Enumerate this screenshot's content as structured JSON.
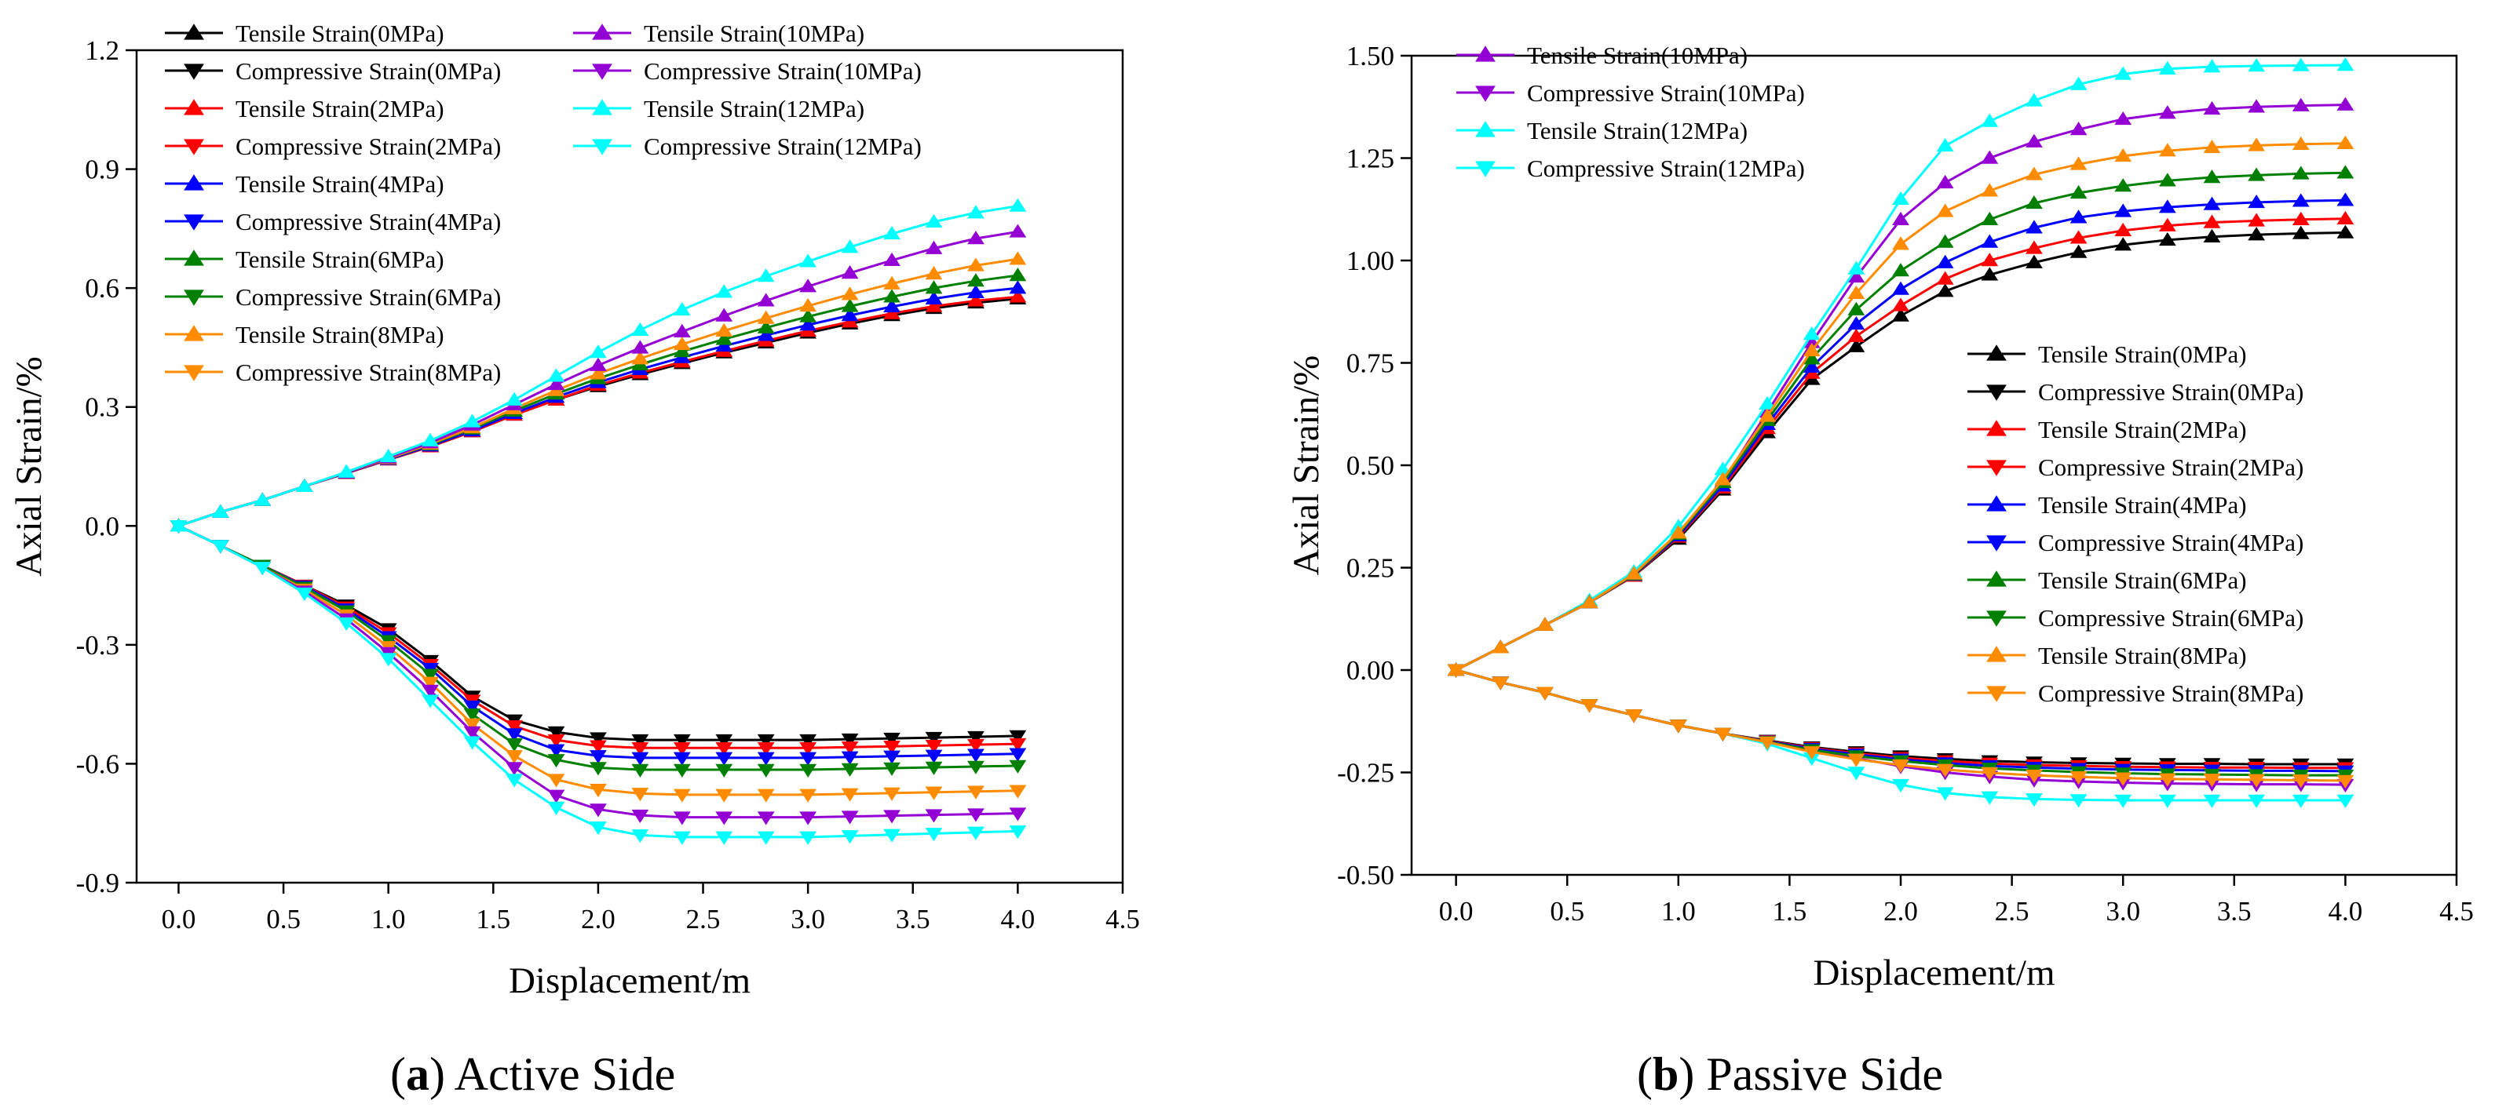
{
  "captions": [
    {
      "letter": "a",
      "text": "Active Side"
    },
    {
      "letter": "b",
      "text": "Passive Side"
    }
  ],
  "colors": {
    "0MPa": "#000000",
    "2MPa": "#ff0000",
    "4MPa": "#0000ff",
    "6MPa": "#008000",
    "8MPa": "#ff8c00",
    "10MPa": "#9400d3",
    "12MPa": "#00ffff"
  },
  "chart_data": [
    {
      "type": "line",
      "title": "",
      "xlabel": "Displacement/m",
      "ylabel": "Axial Strain/%",
      "xlim": [
        -0.2,
        4.5
      ],
      "ylim": [
        -0.9,
        1.2
      ],
      "xticks": [
        "0.0",
        "0.5",
        "1.0",
        "1.5",
        "2.0",
        "2.5",
        "3.0",
        "3.5",
        "4.0",
        "4.5"
      ],
      "yticks": [
        "-0.9",
        "-0.6",
        "-0.3",
        "0.0",
        "0.3",
        "0.6",
        "0.9",
        "1.2"
      ],
      "legend": "top-left",
      "x": [
        0,
        0.2,
        0.4,
        0.6,
        0.8,
        1.0,
        1.2,
        1.4,
        1.6,
        1.8,
        2.0,
        2.2,
        2.4,
        2.6,
        2.8,
        3.0,
        3.2,
        3.4,
        3.6,
        3.8,
        4.0
      ],
      "series": [
        {
          "name": "Tensile Strain(0MPa)",
          "key": "0MPa",
          "marker": "up",
          "values": [
            0,
            0.035,
            0.065,
            0.1,
            0.133,
            0.167,
            0.2,
            0.238,
            0.28,
            0.318,
            0.352,
            0.382,
            0.41,
            0.437,
            0.462,
            0.487,
            0.51,
            0.531,
            0.549,
            0.563,
            0.573
          ]
        },
        {
          "name": "Compressive Strain(0MPa)",
          "key": "0MPa",
          "marker": "down",
          "values": [
            0,
            -0.05,
            -0.1,
            -0.15,
            -0.2,
            -0.26,
            -0.34,
            -0.43,
            -0.49,
            -0.52,
            -0.535,
            -0.54,
            -0.54,
            -0.54,
            -0.54,
            -0.54,
            -0.538,
            -0.536,
            -0.534,
            -0.532,
            -0.53
          ]
        },
        {
          "name": "Tensile Strain(2MPa)",
          "key": "2MPa",
          "marker": "up",
          "values": [
            0,
            0.035,
            0.065,
            0.1,
            0.133,
            0.167,
            0.2,
            0.238,
            0.28,
            0.318,
            0.355,
            0.386,
            0.414,
            0.441,
            0.467,
            0.492,
            0.515,
            0.536,
            0.554,
            0.568,
            0.578
          ]
        },
        {
          "name": "Compressive Strain(2MPa)",
          "key": "2MPa",
          "marker": "down",
          "values": [
            0,
            -0.05,
            -0.1,
            -0.15,
            -0.205,
            -0.27,
            -0.35,
            -0.44,
            -0.505,
            -0.54,
            -0.555,
            -0.56,
            -0.56,
            -0.56,
            -0.56,
            -0.56,
            -0.558,
            -0.556,
            -0.554,
            -0.552,
            -0.55
          ]
        },
        {
          "name": "Tensile Strain(4MPa)",
          "key": "4MPa",
          "marker": "up",
          "values": [
            0,
            0.035,
            0.065,
            0.1,
            0.134,
            0.168,
            0.202,
            0.24,
            0.284,
            0.325,
            0.362,
            0.395,
            0.425,
            0.454,
            0.481,
            0.507,
            0.531,
            0.553,
            0.573,
            0.589,
            0.6
          ]
        },
        {
          "name": "Compressive Strain(4MPa)",
          "key": "4MPa",
          "marker": "down",
          "values": [
            0,
            -0.05,
            -0.1,
            -0.152,
            -0.21,
            -0.28,
            -0.36,
            -0.455,
            -0.525,
            -0.565,
            -0.58,
            -0.585,
            -0.585,
            -0.585,
            -0.585,
            -0.585,
            -0.583,
            -0.581,
            -0.579,
            -0.577,
            -0.575
          ]
        },
        {
          "name": "Tensile Strain(6MPa)",
          "key": "6MPa",
          "marker": "up",
          "values": [
            0,
            0.035,
            0.065,
            0.1,
            0.135,
            0.17,
            0.205,
            0.245,
            0.29,
            0.333,
            0.372,
            0.407,
            0.44,
            0.471,
            0.5,
            0.528,
            0.554,
            0.578,
            0.6,
            0.618,
            0.632
          ]
        },
        {
          "name": "Compressive Strain(6MPa)",
          "key": "6MPa",
          "marker": "down",
          "values": [
            0,
            -0.05,
            -0.1,
            -0.155,
            -0.215,
            -0.29,
            -0.375,
            -0.475,
            -0.55,
            -0.59,
            -0.61,
            -0.615,
            -0.615,
            -0.615,
            -0.615,
            -0.615,
            -0.613,
            -0.611,
            -0.609,
            -0.607,
            -0.605
          ]
        },
        {
          "name": "Tensile Strain(8MPa)",
          "key": "8MPa",
          "marker": "up",
          "values": [
            0,
            0.035,
            0.065,
            0.1,
            0.135,
            0.17,
            0.207,
            0.248,
            0.296,
            0.342,
            0.384,
            0.422,
            0.458,
            0.492,
            0.524,
            0.555,
            0.584,
            0.611,
            0.636,
            0.657,
            0.673
          ]
        },
        {
          "name": "Compressive Strain(8MPa)",
          "key": "8MPa",
          "marker": "down",
          "values": [
            0,
            -0.05,
            -0.105,
            -0.16,
            -0.225,
            -0.305,
            -0.395,
            -0.5,
            -0.58,
            -0.64,
            -0.665,
            -0.675,
            -0.678,
            -0.678,
            -0.678,
            -0.678,
            -0.676,
            -0.674,
            -0.672,
            -0.67,
            -0.668
          ]
        },
        {
          "name": "Tensile Strain(10MPa)",
          "key": "10MPa",
          "marker": "up",
          "values": [
            0,
            0.035,
            0.065,
            0.1,
            0.135,
            0.172,
            0.21,
            0.255,
            0.306,
            0.357,
            0.405,
            0.449,
            0.49,
            0.53,
            0.568,
            0.604,
            0.638,
            0.67,
            0.7,
            0.725,
            0.742
          ]
        },
        {
          "name": "Compressive Strain(10MPa)",
          "key": "10MPa",
          "marker": "down",
          "values": [
            0,
            -0.05,
            -0.105,
            -0.165,
            -0.235,
            -0.32,
            -0.415,
            -0.52,
            -0.61,
            -0.68,
            -0.715,
            -0.73,
            -0.735,
            -0.735,
            -0.735,
            -0.735,
            -0.733,
            -0.731,
            -0.729,
            -0.727,
            -0.725
          ]
        },
        {
          "name": "Tensile Strain(12MPa)",
          "key": "12MPa",
          "marker": "up",
          "values": [
            0,
            0.035,
            0.065,
            0.1,
            0.136,
            0.175,
            0.215,
            0.263,
            0.318,
            0.378,
            0.438,
            0.494,
            0.545,
            0.59,
            0.63,
            0.667,
            0.703,
            0.737,
            0.767,
            0.79,
            0.807
          ]
        },
        {
          "name": "Compressive Strain(12MPa)",
          "key": "12MPa",
          "marker": "down",
          "values": [
            0,
            -0.05,
            -0.105,
            -0.17,
            -0.245,
            -0.335,
            -0.44,
            -0.545,
            -0.64,
            -0.71,
            -0.76,
            -0.78,
            -0.785,
            -0.785,
            -0.785,
            -0.785,
            -0.782,
            -0.779,
            -0.776,
            -0.773,
            -0.77
          ]
        }
      ]
    },
    {
      "type": "line",
      "title": "",
      "xlabel": "Displacement/m",
      "ylabel": "Axial Strain/%",
      "xlim": [
        -0.2,
        4.5
      ],
      "ylim": [
        -0.5,
        1.5
      ],
      "xticks": [
        "0.0",
        "0.5",
        "1.0",
        "1.5",
        "2.0",
        "2.5",
        "3.0",
        "3.5",
        "4.0",
        "4.5"
      ],
      "yticks": [
        "-0.50",
        "-0.25",
        "0.00",
        "0.25",
        "0.50",
        "0.75",
        "1.00",
        "1.25",
        "1.50"
      ],
      "legend": "top-left (12MPa, 10MPa); center-right (0–8MPa)",
      "x": [
        0,
        0.2,
        0.4,
        0.6,
        0.8,
        1.0,
        1.2,
        1.4,
        1.6,
        1.8,
        2.0,
        2.2,
        2.4,
        2.6,
        2.8,
        3.0,
        3.2,
        3.4,
        3.6,
        3.8,
        4.0
      ],
      "series": [
        {
          "name": "Tensile Strain(10MPa)",
          "key": "10MPa",
          "marker": "up",
          "values": [
            0,
            0.055,
            0.11,
            0.165,
            0.23,
            0.33,
            0.46,
            0.63,
            0.8,
            0.96,
            1.1,
            1.19,
            1.25,
            1.29,
            1.32,
            1.345,
            1.36,
            1.37,
            1.375,
            1.378,
            1.38
          ]
        },
        {
          "name": "Compressive Strain(10MPa)",
          "key": "10MPa",
          "marker": "down",
          "values": [
            0,
            -0.03,
            -0.055,
            -0.085,
            -0.11,
            -0.135,
            -0.155,
            -0.175,
            -0.195,
            -0.215,
            -0.235,
            -0.25,
            -0.26,
            -0.268,
            -0.272,
            -0.275,
            -0.277,
            -0.278,
            -0.279,
            -0.279,
            -0.28
          ]
        },
        {
          "name": "Tensile Strain(12MPa)",
          "key": "12MPa",
          "marker": "up",
          "values": [
            0,
            0.055,
            0.11,
            0.17,
            0.24,
            0.35,
            0.49,
            0.65,
            0.82,
            0.98,
            1.15,
            1.28,
            1.34,
            1.39,
            1.43,
            1.455,
            1.468,
            1.473,
            1.475,
            1.476,
            1.477
          ]
        },
        {
          "name": "Compressive Strain(12MPa)",
          "key": "12MPa",
          "marker": "down",
          "values": [
            0,
            -0.03,
            -0.055,
            -0.085,
            -0.11,
            -0.135,
            -0.155,
            -0.18,
            -0.215,
            -0.25,
            -0.28,
            -0.3,
            -0.31,
            -0.315,
            -0.317,
            -0.318,
            -0.318,
            -0.318,
            -0.318,
            -0.318,
            -0.318
          ]
        },
        {
          "name": "Tensile Strain(0MPa)",
          "key": "0MPa",
          "marker": "up",
          "values": [
            0,
            0.055,
            0.11,
            0.165,
            0.23,
            0.32,
            0.44,
            0.58,
            0.71,
            0.79,
            0.865,
            0.925,
            0.965,
            0.995,
            1.02,
            1.038,
            1.05,
            1.058,
            1.063,
            1.066,
            1.068
          ]
        },
        {
          "name": "Compressive Strain(0MPa)",
          "key": "0MPa",
          "marker": "down",
          "values": [
            0,
            -0.03,
            -0.055,
            -0.085,
            -0.11,
            -0.135,
            -0.155,
            -0.172,
            -0.188,
            -0.2,
            -0.21,
            -0.217,
            -0.222,
            -0.225,
            -0.227,
            -0.228,
            -0.229,
            -0.229,
            -0.23,
            -0.23,
            -0.23
          ]
        },
        {
          "name": "Tensile Strain(2MPa)",
          "key": "2MPa",
          "marker": "up",
          "values": [
            0,
            0.055,
            0.11,
            0.165,
            0.23,
            0.325,
            0.445,
            0.59,
            0.725,
            0.815,
            0.89,
            0.955,
            1.0,
            1.03,
            1.055,
            1.073,
            1.085,
            1.093,
            1.097,
            1.1,
            1.102
          ]
        },
        {
          "name": "Compressive Strain(2MPa)",
          "key": "2MPa",
          "marker": "down",
          "values": [
            0,
            -0.03,
            -0.055,
            -0.085,
            -0.11,
            -0.135,
            -0.155,
            -0.173,
            -0.19,
            -0.203,
            -0.214,
            -0.222,
            -0.228,
            -0.232,
            -0.234,
            -0.236,
            -0.237,
            -0.238,
            -0.238,
            -0.239,
            -0.239
          ]
        },
        {
          "name": "Tensile Strain(4MPa)",
          "key": "4MPa",
          "marker": "up",
          "values": [
            0,
            0.055,
            0.11,
            0.165,
            0.232,
            0.328,
            0.45,
            0.6,
            0.74,
            0.845,
            0.93,
            0.995,
            1.045,
            1.08,
            1.105,
            1.12,
            1.13,
            1.137,
            1.142,
            1.145,
            1.147
          ]
        },
        {
          "name": "Compressive Strain(4MPa)",
          "key": "4MPa",
          "marker": "down",
          "values": [
            0,
            -0.03,
            -0.055,
            -0.085,
            -0.11,
            -0.135,
            -0.155,
            -0.174,
            -0.192,
            -0.206,
            -0.218,
            -0.227,
            -0.234,
            -0.238,
            -0.241,
            -0.243,
            -0.244,
            -0.245,
            -0.246,
            -0.246,
            -0.247
          ]
        },
        {
          "name": "Tensile Strain(6MPa)",
          "key": "6MPa",
          "marker": "up",
          "values": [
            0,
            0.055,
            0.11,
            0.165,
            0.233,
            0.332,
            0.458,
            0.61,
            0.76,
            0.88,
            0.975,
            1.045,
            1.1,
            1.14,
            1.165,
            1.182,
            1.195,
            1.203,
            1.208,
            1.212,
            1.214
          ]
        },
        {
          "name": "Compressive Strain(6MPa)",
          "key": "6MPa",
          "marker": "down",
          "values": [
            0,
            -0.03,
            -0.055,
            -0.085,
            -0.11,
            -0.135,
            -0.155,
            -0.175,
            -0.195,
            -0.21,
            -0.222,
            -0.232,
            -0.24,
            -0.245,
            -0.249,
            -0.252,
            -0.254,
            -0.255,
            -0.256,
            -0.257,
            -0.257
          ]
        },
        {
          "name": "Tensile Strain(8MPa)",
          "key": "8MPa",
          "marker": "up",
          "values": [
            0,
            0.055,
            0.11,
            0.165,
            0.235,
            0.335,
            0.465,
            0.62,
            0.78,
            0.92,
            1.04,
            1.12,
            1.17,
            1.21,
            1.235,
            1.255,
            1.268,
            1.276,
            1.281,
            1.284,
            1.286
          ]
        },
        {
          "name": "Compressive Strain(8MPa)",
          "key": "8MPa",
          "marker": "down",
          "values": [
            0,
            -0.03,
            -0.055,
            -0.085,
            -0.11,
            -0.135,
            -0.155,
            -0.176,
            -0.2,
            -0.218,
            -0.232,
            -0.243,
            -0.251,
            -0.257,
            -0.261,
            -0.264,
            -0.266,
            -0.267,
            -0.268,
            -0.269,
            -0.27
          ]
        }
      ]
    }
  ]
}
